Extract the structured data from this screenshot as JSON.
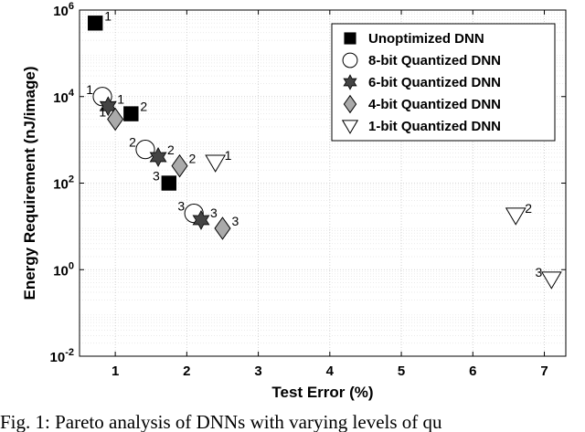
{
  "chart_data": {
    "type": "scatter",
    "title": "",
    "xlabel": "Test Error (%)",
    "ylabel": "Energy Requirement (nJ/image)",
    "xlim": [
      0.5,
      7.3
    ],
    "ylim": [
      0.01,
      1000000
    ],
    "yscale": "log",
    "xticks": [
      1,
      2,
      3,
      4,
      5,
      6,
      7
    ],
    "xtick_labels": [
      "1",
      "2",
      "3",
      "4",
      "5",
      "6",
      "7"
    ],
    "yticks": [
      0.01,
      1,
      100,
      10000,
      1000000
    ],
    "ytick_labels": [
      {
        "base": "10",
        "exp": "-2"
      },
      {
        "base": "10",
        "exp": "0"
      },
      {
        "base": "10",
        "exp": "2"
      },
      {
        "base": "10",
        "exp": "4"
      },
      {
        "base": "10",
        "exp": "6"
      }
    ],
    "grid": true,
    "legend_position": "top-right",
    "series": [
      {
        "name": "Unoptimized DNN",
        "marker": "square",
        "fill": "#000000",
        "points": [
          {
            "x": 0.72,
            "y": 500000,
            "label": "1",
            "label_pos": "right"
          },
          {
            "x": 1.22,
            "y": 4000,
            "label": "2",
            "label_pos": "right"
          },
          {
            "x": 1.75,
            "y": 100,
            "label": "3",
            "label_pos": "left"
          }
        ]
      },
      {
        "name": "8-bit Quantized DNN",
        "marker": "circle",
        "fill": "#ffffff",
        "points": [
          {
            "x": 0.82,
            "y": 10000,
            "label": "1",
            "label_pos": "left"
          },
          {
            "x": 1.42,
            "y": 600,
            "label": "2",
            "label_pos": "left"
          },
          {
            "x": 2.1,
            "y": 20,
            "label": "3",
            "label_pos": "left"
          }
        ]
      },
      {
        "name": "6-bit Quantized DNN",
        "marker": "hexagram",
        "fill": "#444444",
        "points": [
          {
            "x": 0.9,
            "y": 6000,
            "label": "1",
            "label_pos": "right"
          },
          {
            "x": 1.6,
            "y": 400,
            "label": "2",
            "label_pos": "right"
          },
          {
            "x": 2.2,
            "y": 14,
            "label": "3",
            "label_pos": "right"
          }
        ]
      },
      {
        "name": "4-bit Quantized DNN",
        "marker": "diamond",
        "fill": "#aaaaaa",
        "points": [
          {
            "x": 1.0,
            "y": 3000,
            "label": "1",
            "label_pos": "left"
          },
          {
            "x": 1.9,
            "y": 250,
            "label": "2",
            "label_pos": "right"
          },
          {
            "x": 2.5,
            "y": 9,
            "label": "3",
            "label_pos": "right"
          }
        ]
      },
      {
        "name": "1-bit Quantized DNN",
        "marker": "triangle-down",
        "fill": "#ffffff",
        "points": [
          {
            "x": 2.4,
            "y": 300,
            "label": "1",
            "label_pos": "right"
          },
          {
            "x": 6.6,
            "y": 18,
            "label": "2",
            "label_pos": "right"
          },
          {
            "x": 7.1,
            "y": 0.6,
            "label": "3",
            "label_pos": "left"
          }
        ]
      }
    ]
  },
  "caption": "Fig. 1: Pareto analysis of DNNs with varying levels of qu"
}
